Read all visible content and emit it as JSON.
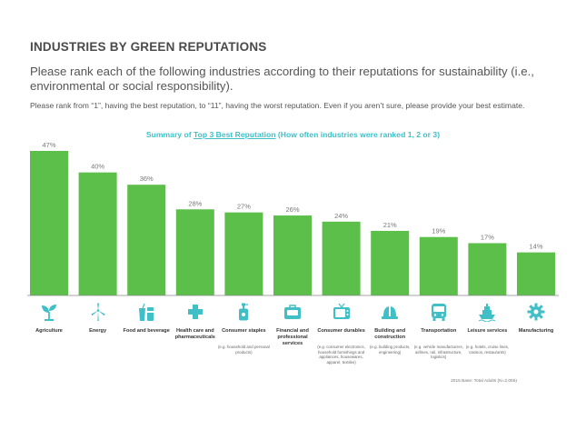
{
  "header": {
    "title": "INDUSTRIES BY GREEN REPUTATIONS",
    "question": "Please rank each of the following industries according to their reputations for sustainability (i.e., environmental or social responsibility).",
    "instructions": "Please rank from “1”, having the best reputation, to “11”, having the worst reputation. Even if you aren’t sure, please provide your best estimate."
  },
  "chart_data": {
    "type": "bar",
    "title_prefix": "Summary of ",
    "title_underlined": "Top 3 Best Reputation",
    "title_suffix": " (How often industries were ranked 1, 2 or 3)",
    "categories": [
      "Agriculture",
      "Energy",
      "Food and beverage",
      "Health care and pharmaceuticals",
      "Consumer staples",
      "Financial and professional services",
      "Consumer durables",
      "Building and construction",
      "Transportation",
      "Leisure services",
      "Manufacturing"
    ],
    "values": [
      47,
      40,
      36,
      28,
      27,
      26,
      24,
      21,
      19,
      17,
      14
    ],
    "value_labels": [
      "47%",
      "40%",
      "36%",
      "28%",
      "27%",
      "26%",
      "24%",
      "21%",
      "19%",
      "17%",
      "14%"
    ],
    "ylim": [
      0,
      47
    ],
    "grid": false,
    "colors": {
      "bar": "#5bbf4a",
      "icon": "#41bfc7",
      "label": "#777777"
    }
  },
  "categories": [
    {
      "name": "Agriculture",
      "sub": "",
      "icon": "sprout-icon"
    },
    {
      "name": "Energy",
      "sub": "",
      "icon": "wind-turbine-icon"
    },
    {
      "name": "Food and beverage",
      "sub": "",
      "icon": "food-beverage-icon"
    },
    {
      "name": "Health care and pharmaceuticals",
      "sub": "",
      "icon": "medical-cross-icon"
    },
    {
      "name": "Consumer staples",
      "sub": "(e.g. household and personal products)",
      "icon": "bottle-icon"
    },
    {
      "name": "Financial and professional services",
      "sub": "",
      "icon": "briefcase-icon"
    },
    {
      "name": "Consumer durables",
      "sub": "(e.g. consumer electronics, household furnishings and appliances, housewares, apparel, textiles)",
      "icon": "television-icon"
    },
    {
      "name": "Building and construction",
      "sub": "(e.g. building products, engineering)",
      "icon": "hard-hat-icon"
    },
    {
      "name": "Transportation",
      "sub": "(e.g. vehicle manufacturers, airlines, rail, infrastructure, logistics)",
      "icon": "bus-icon"
    },
    {
      "name": "Leisure services",
      "sub": "(e.g. hotels, cruise lines, casinos, restaurants)",
      "icon": "cruise-ship-icon"
    },
    {
      "name": "Manufacturing",
      "sub": "",
      "icon": "gear-icon"
    }
  ],
  "footer": {
    "basis": "2015 Base: Total Adults (N=2,055)"
  }
}
